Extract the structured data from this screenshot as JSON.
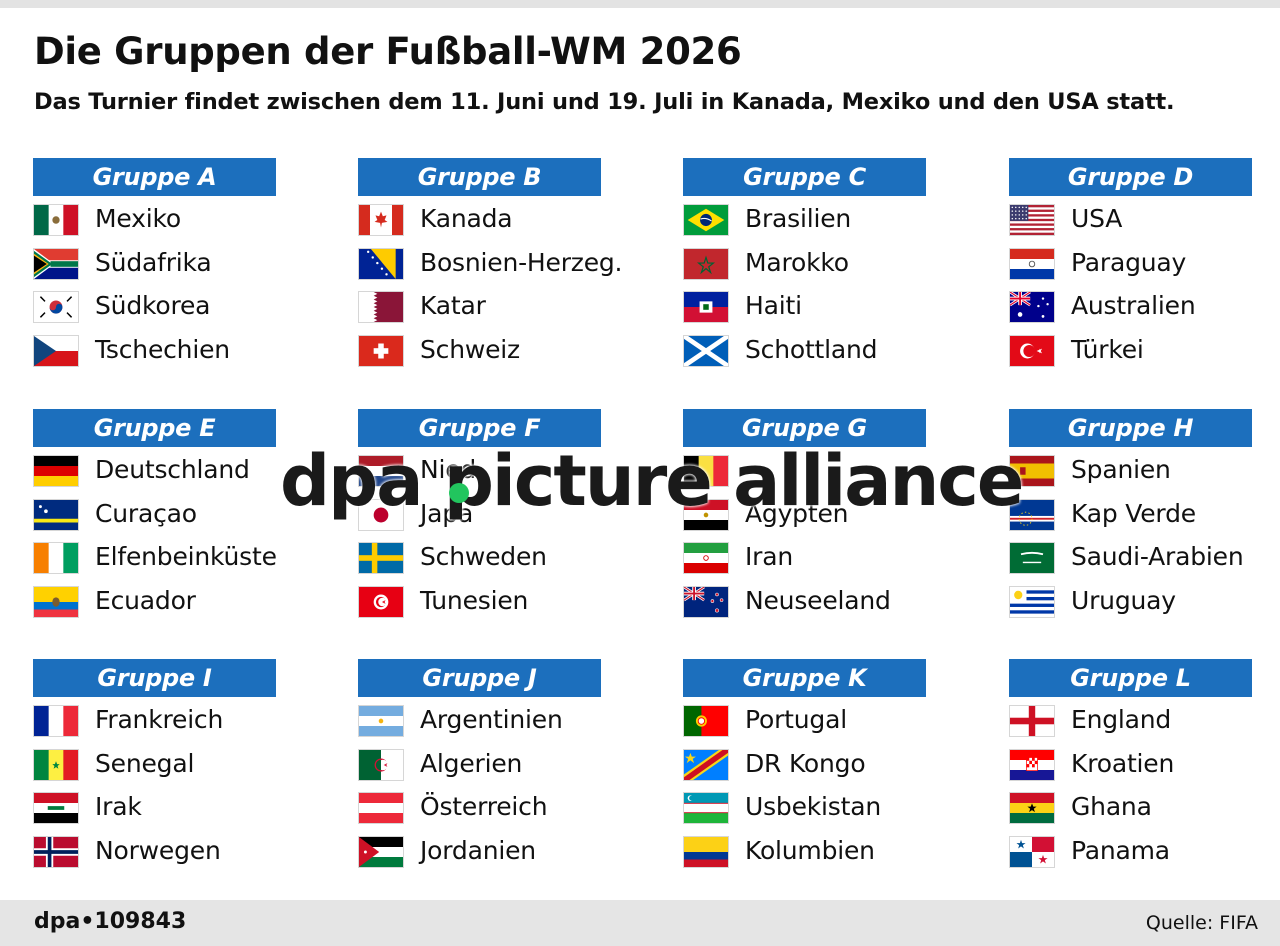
{
  "header": {
    "title": "Die Gruppen der Fußball-WM 2026",
    "subtitle": "Das Turnier findet zwischen dem 11. Juni und 19. Juli in Kanada, Mexiko und den USA statt."
  },
  "groups": [
    {
      "label": "Gruppe A",
      "teams": [
        {
          "name": "Mexiko",
          "flag": "mexico-flag"
        },
        {
          "name": "Südafrika",
          "flag": "south-africa-flag"
        },
        {
          "name": "Südkorea",
          "flag": "south-korea-flag"
        },
        {
          "name": "Tschechien",
          "flag": "czechia-flag"
        }
      ]
    },
    {
      "label": "Gruppe B",
      "teams": [
        {
          "name": "Kanada",
          "flag": "canada-flag"
        },
        {
          "name": "Bosnien-Herzeg.",
          "flag": "bosnia-flag"
        },
        {
          "name": "Katar",
          "flag": "qatar-flag"
        },
        {
          "name": "Schweiz",
          "flag": "switzerland-flag"
        }
      ]
    },
    {
      "label": "Gruppe C",
      "teams": [
        {
          "name": "Brasilien",
          "flag": "brazil-flag"
        },
        {
          "name": "Marokko",
          "flag": "morocco-flag"
        },
        {
          "name": "Haiti",
          "flag": "haiti-flag"
        },
        {
          "name": "Schottland",
          "flag": "scotland-flag"
        }
      ]
    },
    {
      "label": "Gruppe D",
      "teams": [
        {
          "name": "USA",
          "flag": "usa-flag"
        },
        {
          "name": "Paraguay",
          "flag": "paraguay-flag"
        },
        {
          "name": "Australien",
          "flag": "australia-flag"
        },
        {
          "name": "Türkei",
          "flag": "turkey-flag"
        }
      ]
    },
    {
      "label": "Gruppe E",
      "teams": [
        {
          "name": "Deutschland",
          "flag": "germany-flag"
        },
        {
          "name": "Curaçao",
          "flag": "curacao-flag"
        },
        {
          "name": "Elfenbeinküste",
          "flag": "ivory-coast-flag"
        },
        {
          "name": "Ecuador",
          "flag": "ecuador-flag"
        }
      ]
    },
    {
      "label": "Gruppe F",
      "teams": [
        {
          "name": "Nied",
          "flag": "netherlands-flag"
        },
        {
          "name": "Japa",
          "flag": "japan-flag"
        },
        {
          "name": "Schweden",
          "flag": "sweden-flag"
        },
        {
          "name": "Tunesien",
          "flag": "tunisia-flag"
        }
      ]
    },
    {
      "label": "Gruppe G",
      "teams": [
        {
          "name": "",
          "flag": "belgium-flag"
        },
        {
          "name": "Ägypten",
          "flag": "egypt-flag"
        },
        {
          "name": "Iran",
          "flag": "iran-flag"
        },
        {
          "name": "Neuseeland",
          "flag": "new-zealand-flag"
        }
      ]
    },
    {
      "label": "Gruppe H",
      "teams": [
        {
          "name": "Spanien",
          "flag": "spain-flag"
        },
        {
          "name": "Kap Verde",
          "flag": "cape-verde-flag"
        },
        {
          "name": "Saudi-Arabien",
          "flag": "saudi-arabia-flag"
        },
        {
          "name": "Uruguay",
          "flag": "uruguay-flag"
        }
      ]
    },
    {
      "label": "Gruppe I",
      "teams": [
        {
          "name": "Frankreich",
          "flag": "france-flag"
        },
        {
          "name": "Senegal",
          "flag": "senegal-flag"
        },
        {
          "name": "Irak",
          "flag": "iraq-flag"
        },
        {
          "name": "Norwegen",
          "flag": "norway-flag"
        }
      ]
    },
    {
      "label": "Gruppe J",
      "teams": [
        {
          "name": "Argentinien",
          "flag": "argentina-flag"
        },
        {
          "name": "Algerien",
          "flag": "algeria-flag"
        },
        {
          "name": "Österreich",
          "flag": "austria-flag"
        },
        {
          "name": "Jordanien",
          "flag": "jordan-flag"
        }
      ]
    },
    {
      "label": "Gruppe K",
      "teams": [
        {
          "name": "Portugal",
          "flag": "portugal-flag"
        },
        {
          "name": "DR Kongo",
          "flag": "dr-congo-flag"
        },
        {
          "name": "Usbekistan",
          "flag": "uzbekistan-flag"
        },
        {
          "name": "Kolumbien",
          "flag": "colombia-flag"
        }
      ]
    },
    {
      "label": "Gruppe L",
      "teams": [
        {
          "name": "England",
          "flag": "england-flag"
        },
        {
          "name": "Kroatien",
          "flag": "croatia-flag"
        },
        {
          "name": "Ghana",
          "flag": "ghana-flag"
        },
        {
          "name": "Panama",
          "flag": "panama-flag"
        }
      ]
    }
  ],
  "watermark": {
    "text": "dpa picture alliance"
  },
  "footer": {
    "id": "dpa•109843",
    "source": "Quelle: FIFA"
  },
  "colors": {
    "group_header": "#1c6fbd",
    "footer_bg": "#e5e5e5",
    "watermark_dot": "#22c55e"
  }
}
